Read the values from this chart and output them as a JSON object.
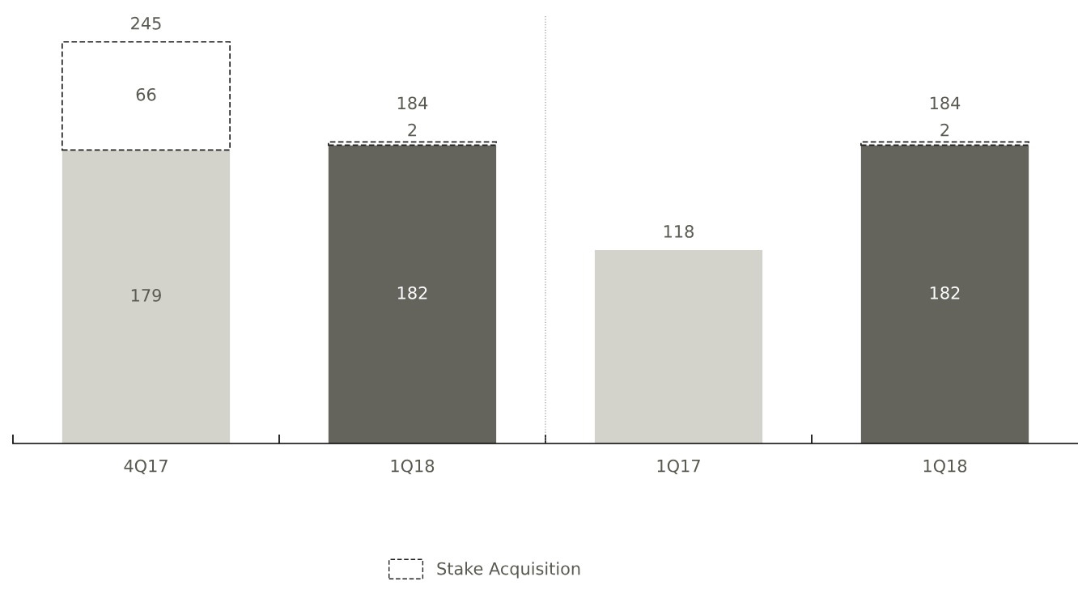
{
  "chart_data": {
    "type": "bar",
    "stacked": true,
    "categories": [
      "4Q17",
      "1Q18",
      "1Q17",
      "1Q18"
    ],
    "series": [
      {
        "color": "#d3d3cb",
        "colors": [
          "#d3d3cb",
          "#64645c",
          "#d3d3cb",
          "#64645c"
        ],
        "values": [
          179,
          182,
          118,
          182
        ],
        "value_labels": [
          "179",
          "182",
          null,
          "182"
        ]
      },
      {
        "name": "Stake Acquisition",
        "color": "#ffffff",
        "line_style": "dashed",
        "values": [
          66,
          2,
          null,
          2
        ],
        "value_labels": [
          "66",
          "2",
          null,
          "2"
        ]
      }
    ],
    "totals": [
      "245",
      "184",
      "118",
      "184"
    ],
    "legend": "bottom",
    "grid": false,
    "tick_labels": "x"
  }
}
